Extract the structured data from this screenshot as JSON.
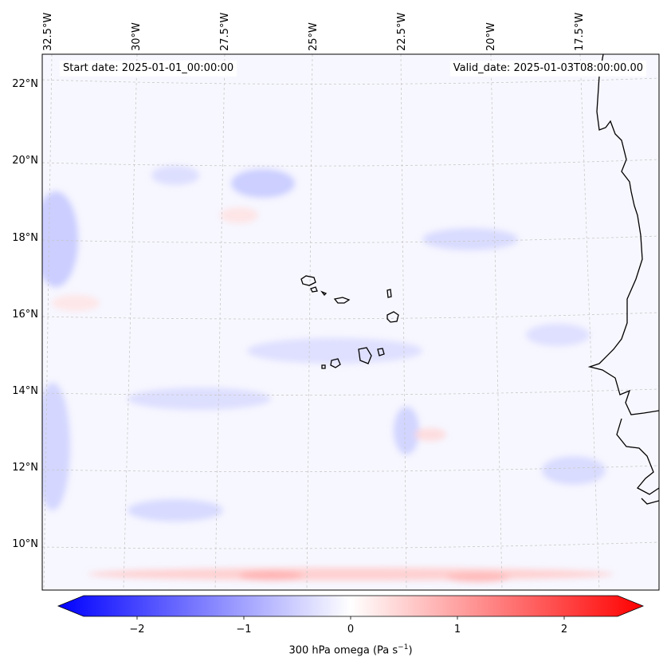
{
  "map": {
    "lon_labels": [
      "32.5°W",
      "30°W",
      "27.5°W",
      "25°W",
      "22.5°W",
      "20°W",
      "17.5°W"
    ],
    "lat_labels": [
      "22°N",
      "20°N",
      "18°N",
      "16°N",
      "14°N",
      "12°N",
      "10°N"
    ],
    "start_date": "Start date: 2025-01-01_00:00:00",
    "valid_date": "Valid_date: 2025-01-03T08:00:00.00",
    "field_background": "#f7f7ff",
    "blue_shade": "#5b6bff",
    "red_shade": "#ff6b6b",
    "coastline_color": "#000000",
    "gridline_color": "#c8c8c8"
  },
  "colorbar": {
    "ticks": [
      "−2",
      "−1",
      "0",
      "1",
      "2"
    ],
    "label_pre": "300 hPa omega (Pa s",
    "label_sup": "−1",
    "label_post": ")",
    "cmap": "bwr"
  }
}
